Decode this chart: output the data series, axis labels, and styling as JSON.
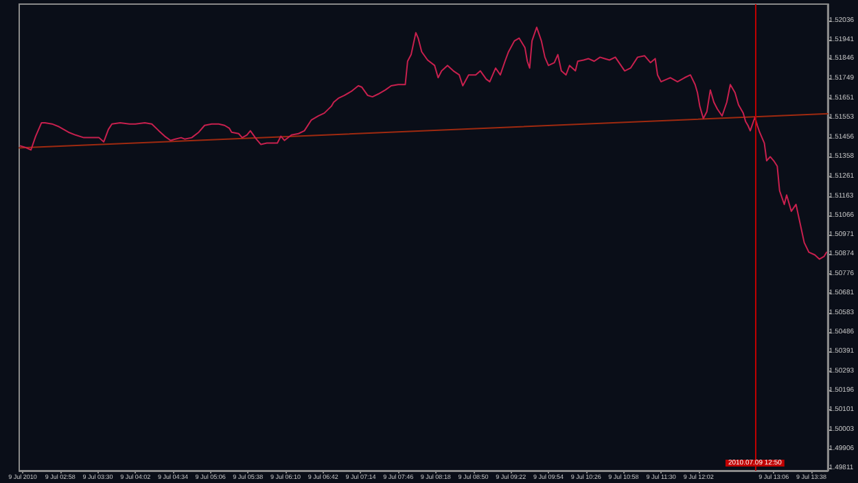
{
  "chart_data": {
    "type": "line",
    "x": [
      "2010-07-09T02:24",
      "2010-07-09T02:28",
      "2010-07-09T02:33",
      "2010-07-09T02:37",
      "2010-07-09T02:42",
      "2010-07-09T02:45",
      "2010-07-09T02:51",
      "2010-07-09T02:57",
      "2010-07-09T03:05",
      "2010-07-09T03:11",
      "2010-07-09T03:18",
      "2010-07-09T03:25",
      "2010-07-09T03:31",
      "2010-07-09T03:35",
      "2010-07-09T03:39",
      "2010-07-09T03:42",
      "2010-07-09T03:49",
      "2010-07-09T03:57",
      "2010-07-09T04:02",
      "2010-07-09T04:10",
      "2010-07-09T04:16",
      "2010-07-09T04:22",
      "2010-07-09T04:27",
      "2010-07-09T04:32",
      "2010-07-09T04:36",
      "2010-07-09T04:41",
      "2010-07-09T04:44",
      "2010-07-09T04:50",
      "2010-07-09T04:56",
      "2010-07-09T05:01",
      "2010-07-09T05:07",
      "2010-07-09T05:13",
      "2010-07-09T05:18",
      "2010-07-09T05:22",
      "2010-07-09T05:24",
      "2010-07-09T05:30",
      "2010-07-09T05:33",
      "2010-07-09T05:37",
      "2010-07-09T05:40",
      "2010-07-09T05:45",
      "2010-07-09T05:49",
      "2010-07-09T05:54",
      "2010-07-09T05:58",
      "2010-07-09T06:03",
      "2010-07-09T06:06",
      "2010-07-09T06:09",
      "2010-07-09T06:15",
      "2010-07-09T06:21",
      "2010-07-09T06:26",
      "2010-07-09T06:32",
      "2010-07-09T06:38",
      "2010-07-09T06:43",
      "2010-07-09T06:49",
      "2010-07-09T06:51",
      "2010-07-09T06:55",
      "2010-07-09T07:00",
      "2010-07-09T07:06",
      "2010-07-09T07:12",
      "2010-07-09T07:15",
      "2010-07-09T07:20",
      "2010-07-09T07:24",
      "2010-07-09T07:29",
      "2010-07-09T07:35",
      "2010-07-09T07:40",
      "2010-07-09T07:46",
      "2010-07-09T07:52",
      "2010-07-09T07:54",
      "2010-07-09T07:57",
      "2010-07-09T08:01",
      "2010-07-09T08:03",
      "2010-07-09T08:06",
      "2010-07-09T08:11",
      "2010-07-09T08:17",
      "2010-07-09T08:20",
      "2010-07-09T08:23",
      "2010-07-09T08:28",
      "2010-07-09T08:33",
      "2010-07-09T08:38",
      "2010-07-09T08:41",
      "2010-07-09T08:46",
      "2010-07-09T08:52",
      "2010-07-09T08:56",
      "2010-07-09T09:01",
      "2010-07-09T09:04",
      "2010-07-09T09:09",
      "2010-07-09T09:13",
      "2010-07-09T09:17",
      "2010-07-09T09:20",
      "2010-07-09T09:25",
      "2010-07-09T09:29",
      "2010-07-09T09:34",
      "2010-07-09T09:36",
      "2010-07-09T09:38",
      "2010-07-09T09:40",
      "2010-07-09T09:44",
      "2010-07-09T09:46",
      "2010-07-09T09:48",
      "2010-07-09T09:51",
      "2010-07-09T09:54",
      "2010-07-09T09:59",
      "2010-07-09T10:02",
      "2010-07-09T10:05",
      "2010-07-09T10:09",
      "2010-07-09T10:12",
      "2010-07-09T10:17",
      "2010-07-09T10:19",
      "2010-07-09T10:24",
      "2010-07-09T10:28",
      "2010-07-09T10:33",
      "2010-07-09T10:38",
      "2010-07-09T10:42",
      "2010-07-09T10:46",
      "2010-07-09T10:51",
      "2010-07-09T10:55",
      "2010-07-09T10:59",
      "2010-07-09T11:04",
      "2010-07-09T11:10",
      "2010-07-09T11:16",
      "2010-07-09T11:21",
      "2010-07-09T11:25",
      "2010-07-09T11:27",
      "2010-07-09T11:30",
      "2010-07-09T11:35",
      "2010-07-09T11:38",
      "2010-07-09T11:44",
      "2010-07-09T11:50",
      "2010-07-09T11:55",
      "2010-07-09T11:59",
      "2010-07-09T12:01",
      "2010-07-09T12:03",
      "2010-07-09T12:06",
      "2010-07-09T12:09",
      "2010-07-09T12:12",
      "2010-07-09T12:15",
      "2010-07-09T12:18",
      "2010-07-09T12:22",
      "2010-07-09T12:26",
      "2010-07-09T12:29",
      "2010-07-09T12:33",
      "2010-07-09T12:36",
      "2010-07-09T12:40",
      "2010-07-09T12:42",
      "2010-07-09T12:44",
      "2010-07-09T12:46",
      "2010-07-09T12:50",
      "2010-07-09T12:52",
      "2010-07-09T12:54",
      "2010-07-09T12:58",
      "2010-07-09T13:00",
      "2010-07-09T13:03",
      "2010-07-09T13:06",
      "2010-07-09T13:09",
      "2010-07-09T13:11",
      "2010-07-09T13:15",
      "2010-07-09T13:17",
      "2010-07-09T13:21",
      "2010-07-09T13:25",
      "2010-07-09T13:30",
      "2010-07-09T13:32",
      "2010-07-09T13:36",
      "2010-07-09T13:41",
      "2010-07-09T13:45",
      "2010-07-09T13:49",
      "2010-07-09T13:51"
    ],
    "series": [
      {
        "color": "#c8204e",
        "values": [
          1.51412,
          1.51405,
          1.51392,
          1.5146,
          1.51527,
          1.51527,
          1.51521,
          1.51507,
          1.5148,
          1.51466,
          1.51453,
          1.51453,
          1.51453,
          1.51432,
          1.51494,
          1.51521,
          1.51527,
          1.51521,
          1.51521,
          1.51527,
          1.51521,
          1.51487,
          1.5146,
          1.51439,
          1.51446,
          1.51453,
          1.51446,
          1.51453,
          1.5148,
          1.51514,
          1.51521,
          1.51521,
          1.51514,
          1.515,
          1.5148,
          1.51473,
          1.51453,
          1.51466,
          1.51487,
          1.51446,
          1.51419,
          1.51426,
          1.51426,
          1.51426,
          1.5146,
          1.51439,
          1.51466,
          1.51473,
          1.51487,
          1.51541,
          1.51561,
          1.51575,
          1.51609,
          1.51629,
          1.51649,
          1.51663,
          1.51683,
          1.51711,
          1.51704,
          1.51663,
          1.51656,
          1.5167,
          1.5169,
          1.51711,
          1.51717,
          1.51717,
          1.51833,
          1.51866,
          1.51975,
          1.51948,
          1.5188,
          1.51839,
          1.51812,
          1.51751,
          1.51785,
          1.51812,
          1.51785,
          1.51765,
          1.51711,
          1.51765,
          1.51765,
          1.51785,
          1.51744,
          1.51731,
          1.51799,
          1.51765,
          1.51833,
          1.5188,
          1.51934,
          1.51948,
          1.519,
          1.51833,
          1.51799,
          1.51934,
          1.52002,
          1.51968,
          1.51934,
          1.51853,
          1.51812,
          1.51826,
          1.51866,
          1.51785,
          1.51765,
          1.51812,
          1.51785,
          1.51833,
          1.51839,
          1.51846,
          1.51833,
          1.51853,
          1.51846,
          1.51839,
          1.51853,
          1.51819,
          1.51785,
          1.51799,
          1.51853,
          1.5186,
          1.51826,
          1.51846,
          1.51765,
          1.51731,
          1.51744,
          1.51751,
          1.51731,
          1.51751,
          1.51765,
          1.51717,
          1.51677,
          1.51609,
          1.51548,
          1.51582,
          1.5169,
          1.51629,
          1.51595,
          1.51561,
          1.51629,
          1.51717,
          1.51677,
          1.51616,
          1.51575,
          1.51534,
          1.51514,
          1.51487,
          1.51555,
          1.51514,
          1.5148,
          1.51426,
          1.51338,
          1.51358,
          1.51338,
          1.51311,
          1.51189,
          1.51121,
          1.51168,
          1.51087,
          1.51121,
          1.50985,
          1.50931,
          1.50883,
          1.5087,
          1.50849,
          1.50863,
          1.50883
        ]
      },
      {
        "type": "line",
        "color": "#a02a10",
        "x": [
          "2010-07-09T02:23",
          "2010-07-09T13:52"
        ],
        "values": [
          1.51402,
          1.51572
        ]
      }
    ],
    "xlim": [
      "2010-07-09T02:23",
      "2010-07-09T13:52"
    ],
    "xticks": [
      {
        "value": "2010-07-09T02:26",
        "label": "9 Jul 2010"
      },
      {
        "value": "2010-07-09T02:58",
        "label": "9 Jul 02:58"
      },
      {
        "value": "2010-07-09T03:30",
        "label": "9 Jul 03:30"
      },
      {
        "value": "2010-07-09T04:02",
        "label": "9 Jul 04:02"
      },
      {
        "value": "2010-07-09T04:34",
        "label": "9 Jul 04:34"
      },
      {
        "value": "2010-07-09T05:06",
        "label": "9 Jul 05:06"
      },
      {
        "value": "2010-07-09T05:38",
        "label": "9 Jul 05:38"
      },
      {
        "value": "2010-07-09T06:10",
        "label": "9 Jul 06:10"
      },
      {
        "value": "2010-07-09T06:42",
        "label": "9 Jul 06:42"
      },
      {
        "value": "2010-07-09T07:14",
        "label": "9 Jul 07:14"
      },
      {
        "value": "2010-07-09T07:46",
        "label": "9 Jul 07:46"
      },
      {
        "value": "2010-07-09T08:18",
        "label": "9 Jul 08:18"
      },
      {
        "value": "2010-07-09T08:50",
        "label": "9 Jul 08:50"
      },
      {
        "value": "2010-07-09T09:22",
        "label": "9 Jul 09:22"
      },
      {
        "value": "2010-07-09T09:54",
        "label": "9 Jul 09:54"
      },
      {
        "value": "2010-07-09T10:26",
        "label": "9 Jul 10:26"
      },
      {
        "value": "2010-07-09T10:58",
        "label": "9 Jul 10:58"
      },
      {
        "value": "2010-07-09T11:30",
        "label": "9 Jul 11:30"
      },
      {
        "value": "2010-07-09T12:02",
        "label": "9 Jul 12:02"
      },
      {
        "value": "2010-07-09T13:06",
        "label": "9 Jul 13:06"
      },
      {
        "value": "2010-07-09T13:38",
        "label": "9 Jul 13:38"
      }
    ],
    "ylim": [
      1.49797,
      1.52117
    ],
    "yticks": [
      1.52036,
      1.51941,
      1.51846,
      1.51749,
      1.51651,
      1.51553,
      1.51456,
      1.51358,
      1.51261,
      1.51163,
      1.51066,
      1.50971,
      1.50874,
      1.50776,
      1.50681,
      1.50583,
      1.50486,
      1.50391,
      1.50293,
      1.50196,
      1.50101,
      1.50003,
      1.49906,
      1.49811
    ],
    "ref_lines": [
      {
        "axis": "x",
        "value": "2010-07-09T12:50",
        "label": "2010.07.09 12:50",
        "color": "#c00000"
      }
    ],
    "grid": false,
    "marker": "none",
    "line_style": "solid"
  }
}
